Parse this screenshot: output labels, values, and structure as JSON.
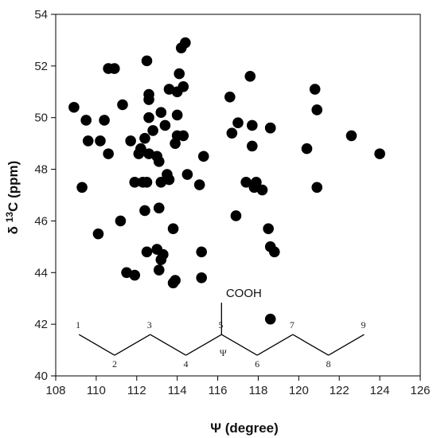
{
  "chart_data": {
    "type": "scatter",
    "title": "",
    "xlabel": "Ψ (degree)",
    "ylabel_prefix": "δ ",
    "ylabel_sup": "13",
    "ylabel_suffix": "C (ppm)",
    "xlim": [
      108,
      126
    ],
    "ylim": [
      40,
      54
    ],
    "xticks": [
      "108",
      "110",
      "112",
      "114",
      "116",
      "118",
      "120",
      "122",
      "124",
      "126"
    ],
    "yticks": [
      "40",
      "42",
      "44",
      "46",
      "48",
      "50",
      "52",
      "54"
    ],
    "grid": false,
    "marker_color": "#000000",
    "points": [
      {
        "x": 108.9,
        "y": 50.4
      },
      {
        "x": 109.5,
        "y": 49.9
      },
      {
        "x": 109.3,
        "y": 47.3
      },
      {
        "x": 109.6,
        "y": 49.1
      },
      {
        "x": 110.2,
        "y": 49.1
      },
      {
        "x": 110.6,
        "y": 48.6
      },
      {
        "x": 110.4,
        "y": 49.9
      },
      {
        "x": 110.6,
        "y": 51.9
      },
      {
        "x": 110.9,
        "y": 51.9
      },
      {
        "x": 110.1,
        "y": 45.5
      },
      {
        "x": 111.3,
        "y": 50.5
      },
      {
        "x": 111.2,
        "y": 46.0
      },
      {
        "x": 111.5,
        "y": 44.0
      },
      {
        "x": 111.7,
        "y": 49.1
      },
      {
        "x": 111.9,
        "y": 47.5
      },
      {
        "x": 111.9,
        "y": 43.9
      },
      {
        "x": 112.1,
        "y": 48.6
      },
      {
        "x": 112.2,
        "y": 48.8
      },
      {
        "x": 112.3,
        "y": 47.5
      },
      {
        "x": 112.5,
        "y": 52.2
      },
      {
        "x": 112.6,
        "y": 50.9
      },
      {
        "x": 112.6,
        "y": 50.7
      },
      {
        "x": 112.4,
        "y": 49.2
      },
      {
        "x": 112.6,
        "y": 50.0
      },
      {
        "x": 112.6,
        "y": 48.6
      },
      {
        "x": 112.5,
        "y": 47.5
      },
      {
        "x": 112.4,
        "y": 46.4
      },
      {
        "x": 112.5,
        "y": 44.8
      },
      {
        "x": 112.8,
        "y": 49.5
      },
      {
        "x": 113.0,
        "y": 48.5
      },
      {
        "x": 113.1,
        "y": 48.3
      },
      {
        "x": 113.2,
        "y": 50.2
      },
      {
        "x": 113.2,
        "y": 47.5
      },
      {
        "x": 113.4,
        "y": 49.7
      },
      {
        "x": 113.5,
        "y": 47.8
      },
      {
        "x": 113.6,
        "y": 47.6
      },
      {
        "x": 113.6,
        "y": 51.1
      },
      {
        "x": 113.1,
        "y": 46.5
      },
      {
        "x": 113.0,
        "y": 44.9
      },
      {
        "x": 113.2,
        "y": 44.5
      },
      {
        "x": 113.3,
        "y": 44.7
      },
      {
        "x": 113.1,
        "y": 44.1
      },
      {
        "x": 113.8,
        "y": 45.7
      },
      {
        "x": 113.9,
        "y": 49.0
      },
      {
        "x": 114.0,
        "y": 49.3
      },
      {
        "x": 114.0,
        "y": 50.1
      },
      {
        "x": 114.0,
        "y": 51.0
      },
      {
        "x": 114.1,
        "y": 51.7
      },
      {
        "x": 114.2,
        "y": 52.7
      },
      {
        "x": 114.4,
        "y": 52.9
      },
      {
        "x": 114.3,
        "y": 51.2
      },
      {
        "x": 114.3,
        "y": 49.3
      },
      {
        "x": 114.5,
        "y": 47.8
      },
      {
        "x": 113.8,
        "y": 43.6
      },
      {
        "x": 113.9,
        "y": 43.7
      },
      {
        "x": 115.1,
        "y": 47.4
      },
      {
        "x": 115.3,
        "y": 48.5
      },
      {
        "x": 115.2,
        "y": 44.8
      },
      {
        "x": 115.2,
        "y": 43.8
      },
      {
        "x": 116.6,
        "y": 50.8
      },
      {
        "x": 116.7,
        "y": 49.4
      },
      {
        "x": 116.9,
        "y": 46.2
      },
      {
        "x": 117.0,
        "y": 49.8
      },
      {
        "x": 117.4,
        "y": 47.5
      },
      {
        "x": 117.6,
        "y": 51.6
      },
      {
        "x": 117.7,
        "y": 49.7
      },
      {
        "x": 117.7,
        "y": 48.9
      },
      {
        "x": 117.8,
        "y": 47.3
      },
      {
        "x": 117.9,
        "y": 47.5
      },
      {
        "x": 118.2,
        "y": 47.2
      },
      {
        "x": 118.5,
        "y": 45.7
      },
      {
        "x": 118.6,
        "y": 45.0
      },
      {
        "x": 118.8,
        "y": 44.8
      },
      {
        "x": 118.6,
        "y": 49.6
      },
      {
        "x": 118.6,
        "y": 49.6
      },
      {
        "x": 118.6,
        "y": 42.2
      },
      {
        "x": 120.4,
        "y": 48.8
      },
      {
        "x": 120.8,
        "y": 51.1
      },
      {
        "x": 120.9,
        "y": 50.3
      },
      {
        "x": 120.9,
        "y": 47.3
      },
      {
        "x": 122.6,
        "y": 49.3
      },
      {
        "x": 124.0,
        "y": 48.6
      }
    ],
    "inset": {
      "group_label": "COOH",
      "angle_symbol": "Ψ",
      "atoms": [
        {
          "label": "1",
          "x": 109.5,
          "y": 41.6
        },
        {
          "label": "2",
          "x": 111.5,
          "y": 40.8
        },
        {
          "label": "3",
          "x": 113.5,
          "y": 41.6
        },
        {
          "label": "4",
          "x": 115.5,
          "y": 40.8
        },
        {
          "label": "5",
          "x": 117.5,
          "y": 41.6
        },
        {
          "label": "6",
          "x": 119.5,
          "y": 40.8
        },
        {
          "label": "7",
          "x": 121.5,
          "y": 41.6
        },
        {
          "label": "8",
          "x": 123.5,
          "y": 40.8
        },
        {
          "label": "9",
          "x": 125.5,
          "y": 41.6
        }
      ]
    }
  }
}
